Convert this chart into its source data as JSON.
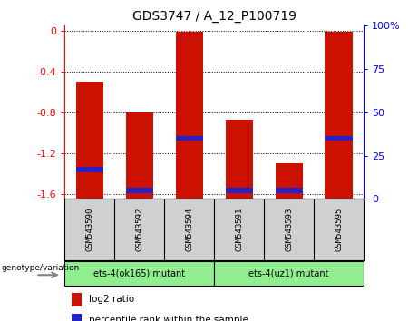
{
  "title": "GDS3747 / A_12_P100719",
  "categories": [
    "GSM543590",
    "GSM543592",
    "GSM543594",
    "GSM543591",
    "GSM543593",
    "GSM543595"
  ],
  "log2_ratio": [
    -0.5,
    -0.8,
    -0.005,
    -0.87,
    -1.3,
    -0.005
  ],
  "percentile_rank": [
    17,
    5,
    35,
    5,
    5,
    35
  ],
  "ylim_left": [
    -1.65,
    0.05
  ],
  "ylim_right": [
    0,
    100
  ],
  "yticks_left": [
    0,
    -0.4,
    -0.8,
    -1.2,
    -1.6
  ],
  "yticks_right": [
    0,
    25,
    50,
    75,
    100
  ],
  "bar_color": "#cc1100",
  "percentile_color": "#2222cc",
  "group1_label": "ets-4(ok165) mutant",
  "group2_label": "ets-4(uz1) mutant",
  "group1_color": "#90ee90",
  "group2_color": "#90ee90",
  "group1_indices": [
    0,
    1,
    2
  ],
  "group2_indices": [
    3,
    4,
    5
  ],
  "genotype_label": "genotype/variation",
  "legend_log2": "log2 ratio",
  "legend_percentile": "percentile rank within the sample",
  "bar_width": 0.55,
  "label_bg_color": "#d0d0d0"
}
